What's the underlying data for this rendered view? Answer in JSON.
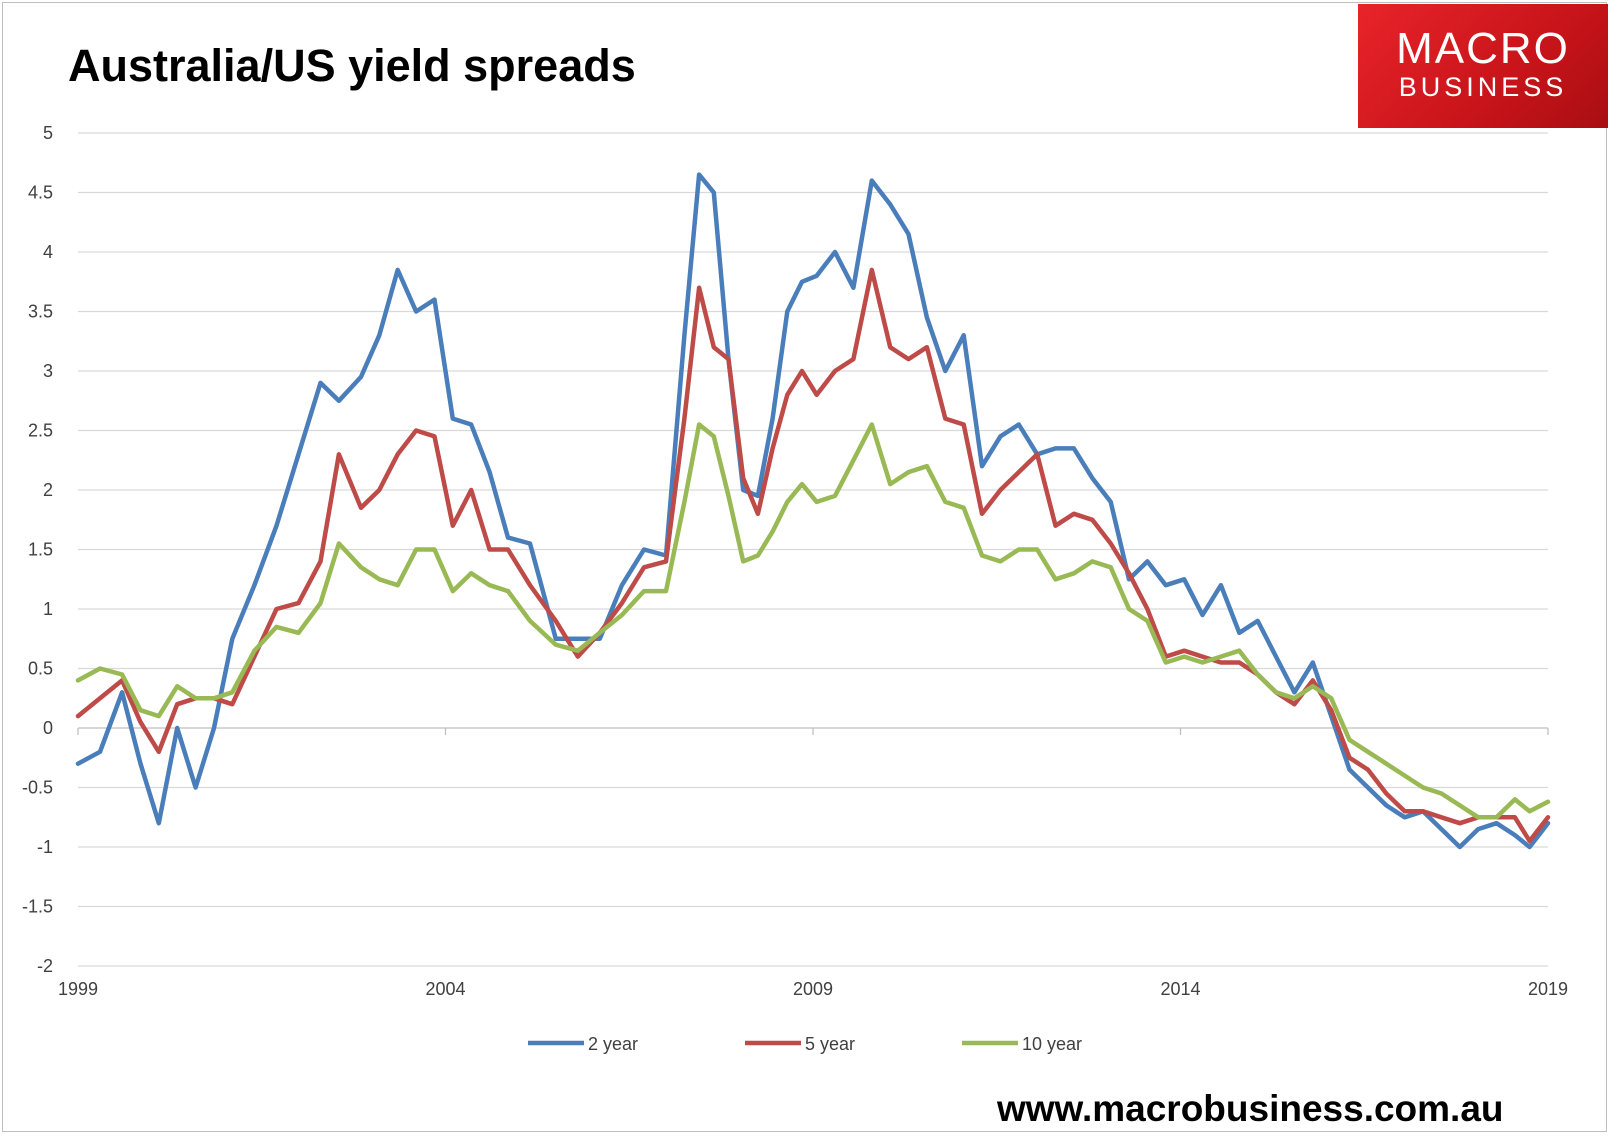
{
  "header": {
    "title": "Australia/US yield spreads"
  },
  "logo": {
    "line1": "MACRO",
    "line2": "BUSINESS"
  },
  "footer": {
    "url": "www.macrobusiness.com.au"
  },
  "colors": {
    "two_year": "#4a7ebb",
    "five_year": "#be4b48",
    "ten_year": "#98b954"
  },
  "chart_data": {
    "type": "line",
    "title": "Australia/US yield spreads",
    "xlabel": "",
    "ylabel": "",
    "xlim": [
      1999,
      2019
    ],
    "ylim": [
      -2,
      5
    ],
    "yticks": [
      "5",
      "4.5",
      "4",
      "3.5",
      "3",
      "2.5",
      "2",
      "1.5",
      "1",
      "0.5",
      "0",
      "-0.5",
      "-1",
      "-1.5",
      "-2"
    ],
    "ytick_values": [
      5,
      4.5,
      4,
      3.5,
      3,
      2.5,
      2,
      1.5,
      1,
      0.5,
      0,
      -0.5,
      -1,
      -1.5,
      -2
    ],
    "xticks": [
      "1999",
      "2004",
      "2009",
      "2014",
      "2019"
    ],
    "xtick_values": [
      1999,
      2004,
      2009,
      2014,
      2019
    ],
    "legend_position": "bottom",
    "series": [
      {
        "name": "2 year",
        "color": "#4a7ebb",
        "x": [
          1999,
          1999.3,
          1999.6,
          1999.85,
          2000.1,
          2000.35,
          2000.6,
          2000.85,
          2001.1,
          2001.4,
          2001.7,
          2002.0,
          2002.3,
          2002.55,
          2002.85,
          2003.1,
          2003.35,
          2003.6,
          2003.85,
          2004.1,
          2004.35,
          2004.6,
          2004.85,
          2005.15,
          2005.5,
          2005.8,
          2006.1,
          2006.4,
          2006.7,
          2007.0,
          2007.25,
          2007.45,
          2007.65,
          2007.85,
          2008.05,
          2008.25,
          2008.45,
          2008.65,
          2008.85,
          2009.05,
          2009.3,
          2009.55,
          2009.8,
          2010.05,
          2010.3,
          2010.55,
          2010.8,
          2011.05,
          2011.3,
          2011.55,
          2011.8,
          2012.05,
          2012.3,
          2012.55,
          2012.8,
          2013.05,
          2013.3,
          2013.55,
          2013.8,
          2014.05,
          2014.3,
          2014.55,
          2014.8,
          2015.05,
          2015.3,
          2015.55,
          2015.8,
          2016.05,
          2016.3,
          2016.55,
          2016.8,
          2017.05,
          2017.3,
          2017.55,
          2017.8,
          2018.05,
          2018.3,
          2018.55,
          2018.75,
          2019.0
        ],
        "values": [
          -0.3,
          -0.2,
          0.3,
          -0.3,
          -0.8,
          0.0,
          -0.5,
          0.0,
          0.75,
          1.2,
          1.7,
          2.3,
          2.9,
          2.75,
          2.95,
          3.3,
          3.85,
          3.5,
          3.6,
          2.6,
          2.55,
          2.15,
          1.6,
          1.55,
          0.75,
          0.75,
          0.75,
          1.2,
          1.5,
          1.45,
          3.3,
          4.65,
          4.5,
          3.1,
          2.0,
          1.95,
          2.6,
          3.5,
          3.75,
          3.8,
          4.0,
          3.7,
          4.6,
          4.4,
          4.15,
          3.45,
          3.0,
          3.3,
          2.2,
          2.45,
          2.55,
          2.3,
          2.35,
          2.35,
          2.1,
          1.9,
          1.25,
          1.4,
          1.2,
          1.25,
          0.95,
          1.2,
          0.8,
          0.9,
          0.6,
          0.3,
          0.55,
          0.1,
          -0.35,
          -0.5,
          -0.65,
          -0.75,
          -0.7,
          -0.85,
          -1.0,
          -0.85,
          -0.8,
          -0.9,
          -1.0,
          -0.8
        ]
      },
      {
        "name": "5 year",
        "color": "#be4b48",
        "x": [
          1999,
          1999.3,
          1999.6,
          1999.85,
          2000.1,
          2000.35,
          2000.6,
          2000.85,
          2001.1,
          2001.4,
          2001.7,
          2002.0,
          2002.3,
          2002.55,
          2002.85,
          2003.1,
          2003.35,
          2003.6,
          2003.85,
          2004.1,
          2004.35,
          2004.6,
          2004.85,
          2005.15,
          2005.5,
          2005.8,
          2006.1,
          2006.4,
          2006.7,
          2007.0,
          2007.25,
          2007.45,
          2007.65,
          2007.85,
          2008.05,
          2008.25,
          2008.45,
          2008.65,
          2008.85,
          2009.05,
          2009.3,
          2009.55,
          2009.8,
          2010.05,
          2010.3,
          2010.55,
          2010.8,
          2011.05,
          2011.3,
          2011.55,
          2011.8,
          2012.05,
          2012.3,
          2012.55,
          2012.8,
          2013.05,
          2013.3,
          2013.55,
          2013.8,
          2014.05,
          2014.3,
          2014.55,
          2014.8,
          2015.05,
          2015.3,
          2015.55,
          2015.8,
          2016.05,
          2016.3,
          2016.55,
          2016.8,
          2017.05,
          2017.3,
          2017.55,
          2017.8,
          2018.05,
          2018.3,
          2018.55,
          2018.75,
          2019.0
        ],
        "values": [
          0.1,
          0.25,
          0.4,
          0.05,
          -0.2,
          0.2,
          0.25,
          0.25,
          0.2,
          0.6,
          1.0,
          1.05,
          1.4,
          2.3,
          1.85,
          2.0,
          2.3,
          2.5,
          2.45,
          1.7,
          2.0,
          1.5,
          1.5,
          1.2,
          0.9,
          0.6,
          0.8,
          1.05,
          1.35,
          1.4,
          2.6,
          3.7,
          3.2,
          3.1,
          2.1,
          1.8,
          2.35,
          2.8,
          3.0,
          2.8,
          3.0,
          3.1,
          3.85,
          3.2,
          3.1,
          3.2,
          2.6,
          2.55,
          1.8,
          2.0,
          2.15,
          2.3,
          1.7,
          1.8,
          1.75,
          1.55,
          1.3,
          1.0,
          0.6,
          0.65,
          0.6,
          0.55,
          0.55,
          0.45,
          0.3,
          0.2,
          0.4,
          0.15,
          -0.25,
          -0.35,
          -0.55,
          -0.7,
          -0.7,
          -0.75,
          -0.8,
          -0.75,
          -0.75,
          -0.75,
          -0.95,
          -0.75
        ]
      },
      {
        "name": "10 year",
        "color": "#98b954",
        "x": [
          1999,
          1999.3,
          1999.6,
          1999.85,
          2000.1,
          2000.35,
          2000.6,
          2000.85,
          2001.1,
          2001.4,
          2001.7,
          2002.0,
          2002.3,
          2002.55,
          2002.85,
          2003.1,
          2003.35,
          2003.6,
          2003.85,
          2004.1,
          2004.35,
          2004.6,
          2004.85,
          2005.15,
          2005.5,
          2005.8,
          2006.1,
          2006.4,
          2006.7,
          2007.0,
          2007.25,
          2007.45,
          2007.65,
          2007.85,
          2008.05,
          2008.25,
          2008.45,
          2008.65,
          2008.85,
          2009.05,
          2009.3,
          2009.55,
          2009.8,
          2010.05,
          2010.3,
          2010.55,
          2010.8,
          2011.05,
          2011.3,
          2011.55,
          2011.8,
          2012.05,
          2012.3,
          2012.55,
          2012.8,
          2013.05,
          2013.3,
          2013.55,
          2013.8,
          2014.05,
          2014.3,
          2014.55,
          2014.8,
          2015.05,
          2015.3,
          2015.55,
          2015.8,
          2016.05,
          2016.3,
          2016.55,
          2016.8,
          2017.05,
          2017.3,
          2017.55,
          2017.8,
          2018.05,
          2018.3,
          2018.55,
          2018.75,
          2019.0
        ],
        "values": [
          0.4,
          0.5,
          0.45,
          0.15,
          0.1,
          0.35,
          0.25,
          0.25,
          0.3,
          0.65,
          0.85,
          0.8,
          1.05,
          1.55,
          1.35,
          1.25,
          1.2,
          1.5,
          1.5,
          1.15,
          1.3,
          1.2,
          1.15,
          0.9,
          0.7,
          0.65,
          0.8,
          0.95,
          1.15,
          1.15,
          1.9,
          2.55,
          2.45,
          1.95,
          1.4,
          1.45,
          1.65,
          1.9,
          2.05,
          1.9,
          1.95,
          2.25,
          2.55,
          2.05,
          2.15,
          2.2,
          1.9,
          1.85,
          1.45,
          1.4,
          1.5,
          1.5,
          1.25,
          1.3,
          1.4,
          1.35,
          1.0,
          0.9,
          0.55,
          0.6,
          0.55,
          0.6,
          0.65,
          0.45,
          0.3,
          0.25,
          0.35,
          0.25,
          -0.1,
          -0.2,
          -0.3,
          -0.4,
          -0.5,
          -0.55,
          -0.65,
          -0.75,
          -0.75,
          -0.6,
          -0.7,
          -0.62
        ]
      }
    ]
  }
}
